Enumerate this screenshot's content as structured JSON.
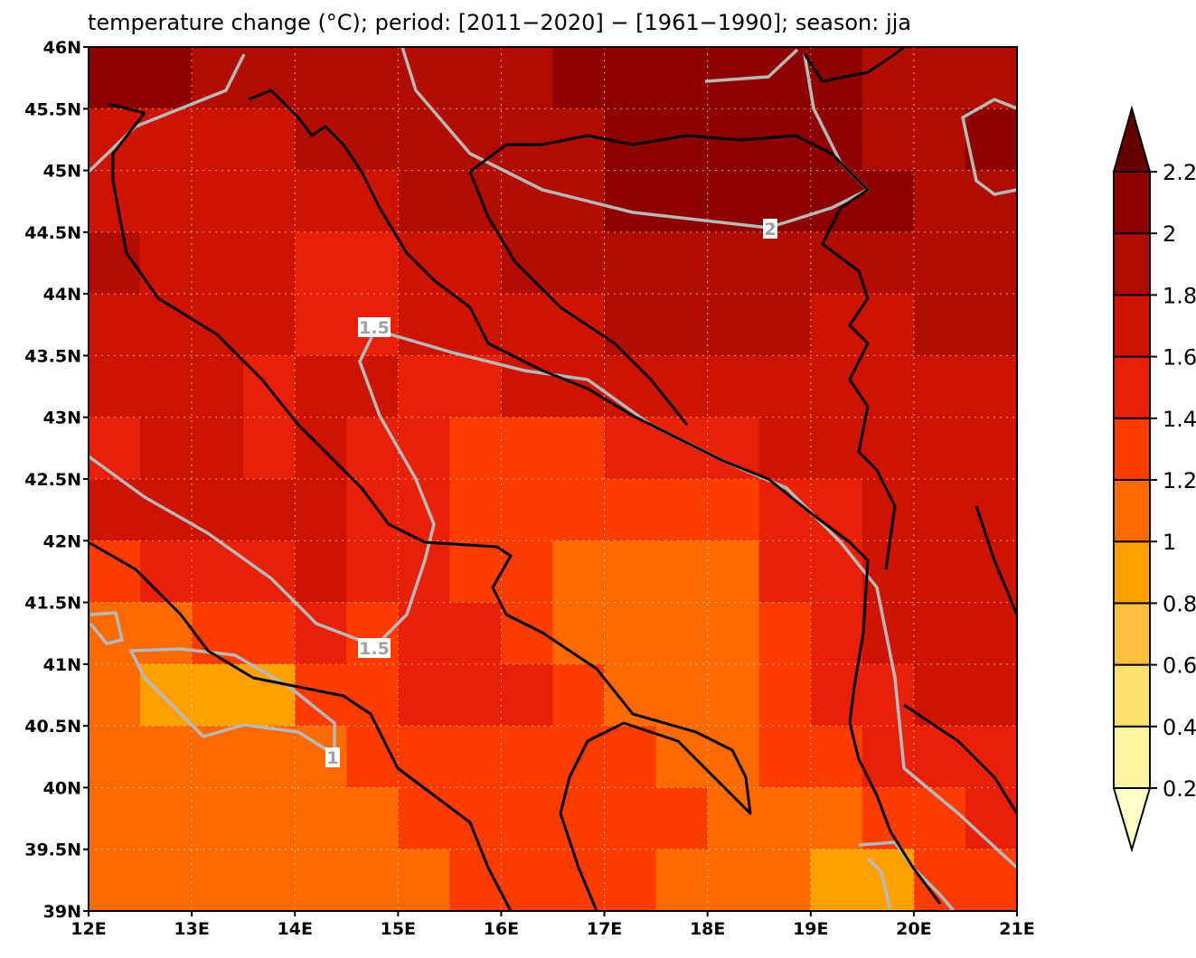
{
  "chart_data": {
    "type": "gridmap",
    "title": "temperature change (°C); period: [2011−2020] − [1961−1990]; season: jja",
    "xlim": [
      12,
      21
    ],
    "ylim": [
      39,
      46
    ],
    "xticks": [
      {
        "value": 12,
        "label": "12E"
      },
      {
        "value": 13,
        "label": "13E"
      },
      {
        "value": 14,
        "label": "14E"
      },
      {
        "value": 15,
        "label": "15E"
      },
      {
        "value": 16,
        "label": "16E"
      },
      {
        "value": 17,
        "label": "17E"
      },
      {
        "value": 18,
        "label": "18E"
      },
      {
        "value": 19,
        "label": "19E"
      },
      {
        "value": 20,
        "label": "20E"
      },
      {
        "value": 21,
        "label": "21E"
      }
    ],
    "yticks": [
      {
        "value": 39,
        "label": "39N"
      },
      {
        "value": 39.5,
        "label": "39.5N"
      },
      {
        "value": 40,
        "label": "40N"
      },
      {
        "value": 40.5,
        "label": "40.5N"
      },
      {
        "value": 41,
        "label": "41N"
      },
      {
        "value": 41.5,
        "label": "41.5N"
      },
      {
        "value": 42,
        "label": "42N"
      },
      {
        "value": 42.5,
        "label": "42.5N"
      },
      {
        "value": 43,
        "label": "43N"
      },
      {
        "value": 43.5,
        "label": "43.5N"
      },
      {
        "value": 44,
        "label": "44N"
      },
      {
        "value": 44.5,
        "label": "44.5N"
      },
      {
        "value": 45,
        "label": "45N"
      },
      {
        "value": 45.5,
        "label": "45.5N"
      },
      {
        "value": 46,
        "label": "46N"
      }
    ],
    "grid": true,
    "values": [
      [
        2.1,
        2.1,
        1.9,
        1.9,
        1.9,
        1.9,
        1.9,
        1.9,
        1.9,
        2.0,
        2.0,
        2.0,
        2.0,
        2.0,
        2.0,
        1.9,
        1.9,
        1.9
      ],
      [
        1.7,
        1.7,
        1.7,
        1.7,
        1.9,
        1.9,
        1.9,
        1.9,
        1.9,
        1.9,
        2.0,
        2.0,
        2.0,
        2.0,
        2.0,
        1.9,
        1.9,
        2.1
      ],
      [
        1.7,
        1.7,
        1.7,
        1.7,
        1.7,
        1.7,
        1.9,
        1.9,
        1.9,
        1.9,
        2.1,
        2.1,
        2.1,
        2.1,
        2.1,
        2.1,
        1.9,
        1.9
      ],
      [
        1.9,
        1.7,
        1.7,
        1.7,
        1.5,
        1.5,
        1.7,
        1.7,
        1.9,
        1.9,
        1.9,
        1.9,
        1.9,
        1.9,
        1.9,
        1.9,
        1.9,
        1.9
      ],
      [
        1.7,
        1.7,
        1.7,
        1.7,
        1.5,
        1.5,
        1.7,
        1.7,
        1.7,
        1.7,
        1.9,
        1.9,
        1.9,
        1.9,
        1.7,
        1.7,
        1.9,
        1.9
      ],
      [
        1.7,
        1.7,
        1.7,
        1.5,
        1.7,
        1.7,
        1.5,
        1.5,
        1.7,
        1.7,
        1.7,
        1.7,
        1.7,
        1.7,
        1.7,
        1.7,
        1.7,
        1.7
      ],
      [
        1.5,
        1.7,
        1.7,
        1.5,
        1.7,
        1.5,
        1.5,
        1.3,
        1.3,
        1.3,
        1.5,
        1.5,
        1.5,
        1.7,
        1.7,
        1.7,
        1.7,
        1.7
      ],
      [
        1.7,
        1.7,
        1.7,
        1.7,
        1.7,
        1.5,
        1.5,
        1.3,
        1.3,
        1.3,
        1.3,
        1.3,
        1.3,
        1.5,
        1.5,
        1.7,
        1.7,
        1.7
      ],
      [
        1.3,
        1.5,
        1.5,
        1.5,
        1.7,
        1.5,
        1.5,
        1.3,
        1.3,
        1.1,
        1.1,
        1.1,
        1.1,
        1.5,
        1.5,
        1.7,
        1.7,
        1.7
      ],
      [
        1.1,
        1.1,
        1.3,
        1.3,
        1.5,
        1.3,
        1.5,
        1.5,
        1.3,
        1.1,
        1.1,
        1.1,
        1.1,
        1.3,
        1.5,
        1.7,
        1.7,
        1.7
      ],
      [
        1.1,
        0.9,
        0.9,
        0.9,
        1.3,
        1.3,
        1.5,
        1.5,
        1.5,
        1.3,
        1.1,
        1.1,
        1.1,
        1.3,
        1.5,
        1.5,
        1.7,
        1.7
      ],
      [
        1.1,
        1.1,
        1.1,
        1.1,
        1.1,
        1.3,
        1.3,
        1.3,
        1.3,
        1.3,
        1.3,
        1.1,
        1.1,
        1.3,
        1.3,
        1.5,
        1.5,
        1.5
      ],
      [
        1.1,
        1.1,
        1.1,
        1.1,
        1.1,
        1.1,
        1.3,
        1.3,
        1.3,
        1.3,
        1.3,
        1.3,
        1.1,
        1.1,
        1.1,
        1.3,
        1.3,
        1.5
      ],
      [
        1.1,
        1.1,
        1.1,
        1.1,
        1.1,
        1.1,
        1.1,
        1.3,
        1.3,
        1.3,
        1.3,
        1.1,
        1.1,
        1.1,
        0.9,
        0.9,
        1.3,
        1.3
      ]
    ],
    "levels": [
      0.2,
      0.4,
      0.6,
      0.8,
      1,
      1.2,
      1.4,
      1.6,
      1.8,
      2,
      2.2
    ],
    "colors": [
      "#ffffc8",
      "#fff4a0",
      "#ffe070",
      "#ffc040",
      "#ffa000",
      "#ff6a00",
      "#ff3c00",
      "#e82008",
      "#cc1400",
      "#b00c00",
      "#8c0000",
      "#640000"
    ],
    "contour_labels": [
      2,
      1.5,
      1.5,
      1
    ]
  }
}
